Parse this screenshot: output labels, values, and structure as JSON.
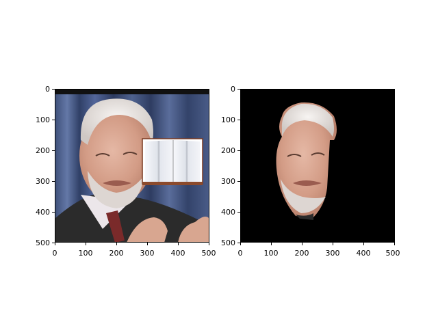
{
  "figure": {
    "panels": [
      {
        "name": "original-with-occluder",
        "xticks": [
          "0",
          "100",
          "200",
          "300",
          "400",
          "500"
        ],
        "yticks": [
          "0",
          "100",
          "200",
          "300",
          "400",
          "500"
        ],
        "content": "portrait photo of an elderly bearded man in suit, with an open-book image pasted over the right side of his face"
      },
      {
        "name": "segmented-face",
        "xticks": [
          "0",
          "100",
          "200",
          "300",
          "400",
          "500"
        ],
        "yticks": [
          "0",
          "100",
          "200",
          "300",
          "400",
          "500"
        ],
        "content": "face region cut out on a black background"
      }
    ],
    "colors": {
      "background_panel2": "#000000",
      "curtain": "#3b4a6e",
      "skin": "#d9a891",
      "hair": "#e8e4e2",
      "suit": "#2b2b2b"
    }
  }
}
